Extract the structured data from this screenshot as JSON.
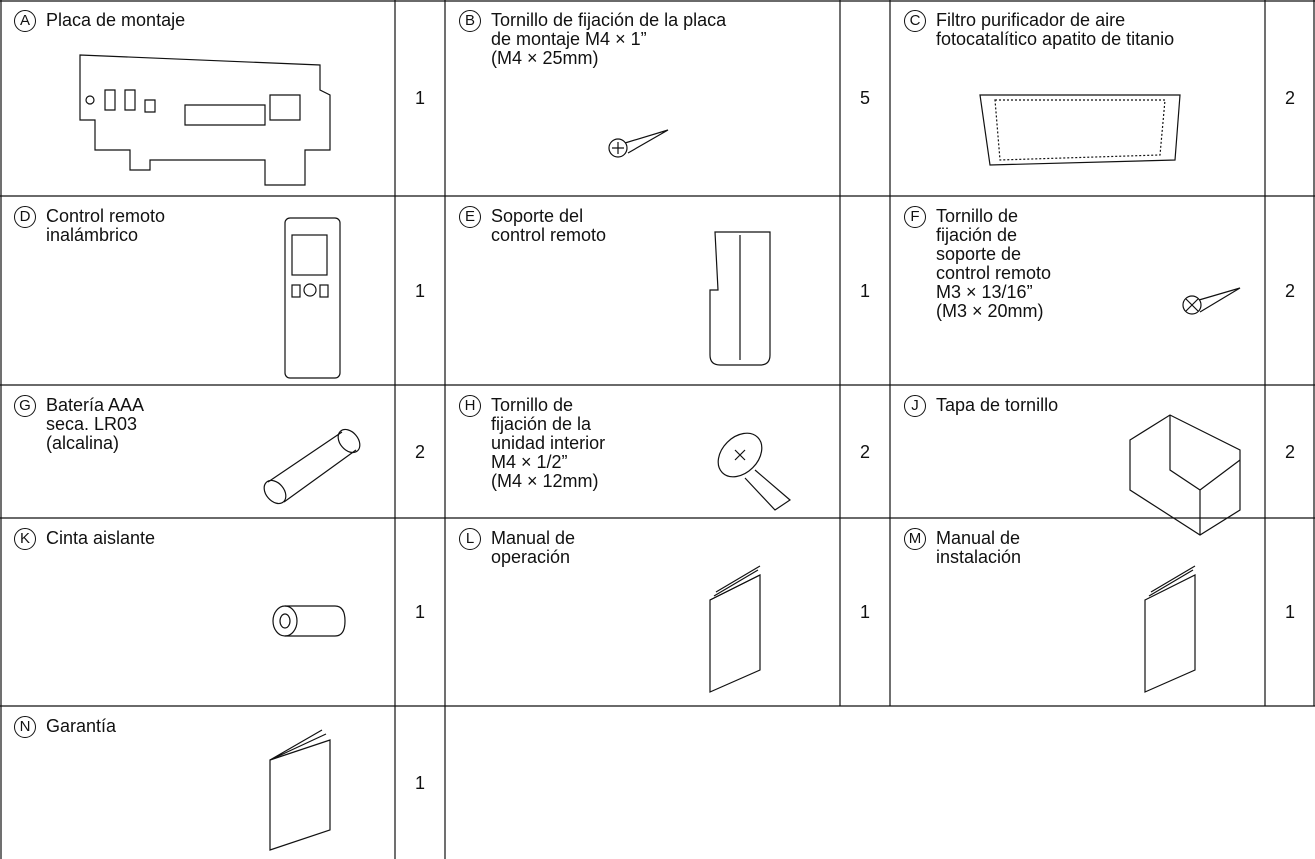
{
  "items": [
    {
      "letter": "A",
      "name": [
        "Placa de montaje"
      ],
      "qty": 1
    },
    {
      "letter": "B",
      "name": [
        "Tornillo de fijación de la placa",
        "de montaje M4 × 1”",
        "(M4 × 25mm)"
      ],
      "qty": 5
    },
    {
      "letter": "C",
      "name": [
        "Filtro purificador de aire",
        "fotocatalítico apatito de titanio"
      ],
      "qty": 2
    },
    {
      "letter": "D",
      "name": [
        "Control remoto",
        "inalámbrico"
      ],
      "qty": 1
    },
    {
      "letter": "E",
      "name": [
        "Soporte del",
        "control remoto"
      ],
      "qty": 1
    },
    {
      "letter": "F",
      "name": [
        "Tornillo de",
        "fijación de",
        "soporte de",
        "control remoto",
        "M3 × 13/16”",
        "(M3 × 20mm)"
      ],
      "qty": 2
    },
    {
      "letter": "G",
      "name": [
        "Batería AAA",
        "seca. LR03",
        "(alcalina)"
      ],
      "qty": 2
    },
    {
      "letter": "H",
      "name": [
        "Tornillo de",
        "fijación de la",
        "unidad interior",
        "M4 × 1/2”",
        "(M4 × 12mm)"
      ],
      "qty": 2
    },
    {
      "letter": "J",
      "name": [
        "Tapa de tornillo"
      ],
      "qty": 2
    },
    {
      "letter": "K",
      "name": [
        "Cinta aislante"
      ],
      "qty": 1
    },
    {
      "letter": "L",
      "name": [
        "Manual de",
        "operación"
      ],
      "qty": 1
    },
    {
      "letter": "M",
      "name": [
        "Manual de",
        "instalación"
      ],
      "qty": 1
    },
    {
      "letter": "N",
      "name": [
        "Garantía"
      ],
      "qty": 1
    }
  ]
}
